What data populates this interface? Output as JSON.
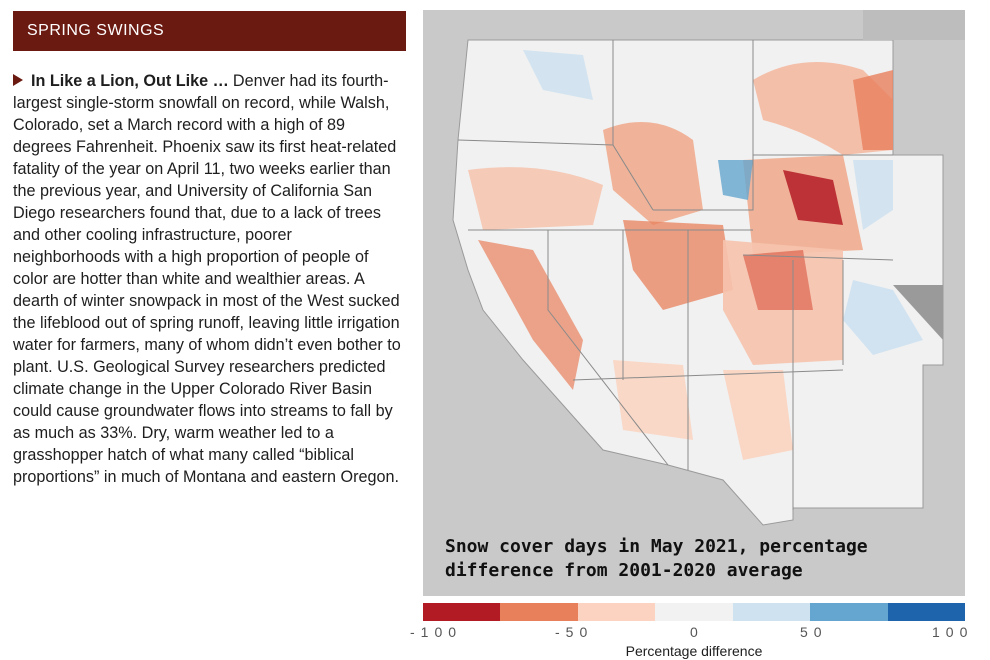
{
  "section_title": "SPRING SWINGS",
  "article": {
    "lead": "In Like a Lion, Out Like …",
    "body": "Denver had its fourth-largest single-storm snowfall on record, while Walsh, Colorado, set a March record with a high of 89 degrees Fahrenheit. Phoenix saw its first heat-related fatality of the year on April 11, two weeks earlier than the previous year, and University of California San Diego researchers found that, due to a lack of trees and other cooling infrastructure, poorer neighborhoods with a high proportion of people of color are hotter than white and wealthier areas. A dearth of winter snowpack in most of the West sucked the lifeblood out of spring runoff, leaving little irrigation water for farmers, many of whom didn’t even bother to plant. U.S. Geological Survey researchers predicted climate change in the Upper Colorado River Basin could cause groundwater flows into streams to fall by as much as 33%. Dry, warm weather led to a grasshopper hatch of what many called “biblical proportions” in much of Montana and eastern Oregon."
  },
  "map": {
    "caption_line1": "Snow cover days in May 2021, percentage",
    "caption_line2": "difference from 2001-2020 average"
  },
  "legend": {
    "title": "Percentage difference",
    "colors": [
      "#b31b24",
      "#e8805c",
      "#fbd3c0",
      "#f2f2f2",
      "#cfe2f0",
      "#64a6d0",
      "#1d64ad"
    ],
    "ticks": [
      "-100",
      "-50",
      "0",
      "50",
      "100"
    ]
  }
}
